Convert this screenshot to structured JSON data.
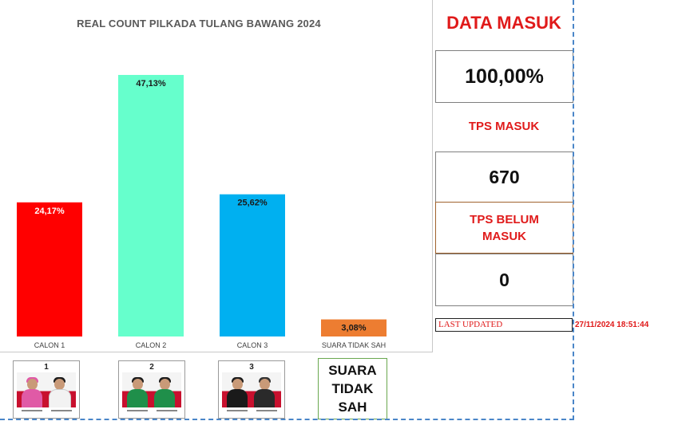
{
  "chart_data": {
    "type": "bar",
    "title": "REAL COUNT PILKADA TULANG BAWANG 2024",
    "categories": [
      "CALON 1",
      "CALON 2",
      "CALON 3",
      "SUARA TIDAK SAH"
    ],
    "values": [
      24.17,
      47.13,
      25.62,
      3.08
    ],
    "value_labels": [
      "24,17%",
      "47,13%",
      "25,62%",
      "3,08%"
    ],
    "bar_colors": [
      "#ff0000",
      "#66ffcc",
      "#00b0f0",
      "#ed7d31"
    ],
    "label_colors": [
      "#ffffff",
      "#1a1a1a",
      "#1a1a1a",
      "#1a1a1a"
    ],
    "ylim": [
      0,
      50
    ],
    "xlabel": "",
    "ylabel": "",
    "grid": false,
    "legend": "none"
  },
  "candidates": [
    {
      "number": "1",
      "shirt_left": "#e05aa6",
      "shirt_right": "#ffffff"
    },
    {
      "number": "2",
      "shirt_left": "#1f8f4a",
      "shirt_right": "#1f8f4a"
    },
    {
      "number": "3",
      "shirt_left": "#1a1a1a",
      "shirt_right": "#1a1a1a"
    }
  ],
  "invalid_card": {
    "text": "SUARA\nTIDAK\nSAH"
  },
  "summary": {
    "title": "DATA MASUK",
    "percent": "100,00%",
    "tps_masuk_label": "TPS MASUK",
    "tps_masuk_count": "670",
    "tps_belum_label": "TPS BELUM\nMASUK",
    "tps_belum_count": "0",
    "last_updated_label": "LAST UPDATED",
    "last_updated_value": "27/11/2024 18:51:44"
  },
  "colors": {
    "accent_red": "#e01a1a",
    "dash_blue": "#4a86c8"
  }
}
